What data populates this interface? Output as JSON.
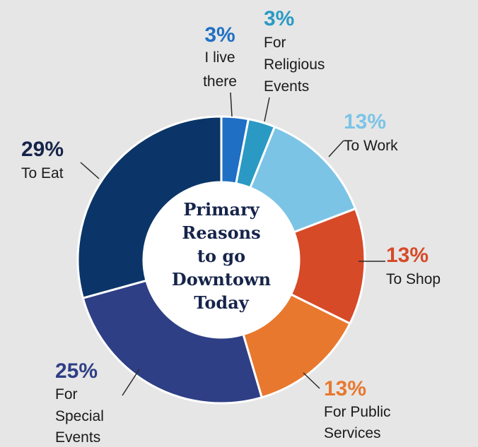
{
  "chart_data": {
    "type": "donut",
    "center_title": [
      "Primary",
      "Reasons",
      "to go",
      "Downtown",
      "Today"
    ],
    "slices": [
      {
        "value": 3,
        "pct_label": "3%",
        "label_lines": [
          "I live",
          "there"
        ],
        "color": "#1f6fc4"
      },
      {
        "value": 3,
        "pct_label": "3%",
        "label_lines": [
          "For",
          "Religious",
          "Events"
        ],
        "color": "#2a9ac4"
      },
      {
        "value": 13,
        "pct_label": "13%",
        "label_lines": [
          "To Work"
        ],
        "color": "#7cc4e6"
      },
      {
        "value": 13,
        "pct_label": "13%",
        "label_lines": [
          "To Shop"
        ],
        "color": "#d64a28"
      },
      {
        "value": 13,
        "pct_label": "13%",
        "label_lines": [
          "For Public",
          "Services"
        ],
        "color": "#e8782e"
      },
      {
        "value": 25,
        "pct_label": "25%",
        "label_lines": [
          "For",
          "Special",
          "Events"
        ],
        "color": "#2e3f85"
      },
      {
        "value": 29,
        "pct_label": "29%",
        "label_lines": [
          "To Eat"
        ],
        "color": "#0b3568"
      }
    ],
    "pct_colors": [
      "#1f6fc4",
      "#2a9ac4",
      "#7cc4e6",
      "#d64a28",
      "#e8782e",
      "#2e3f85",
      "#16244a"
    ]
  }
}
